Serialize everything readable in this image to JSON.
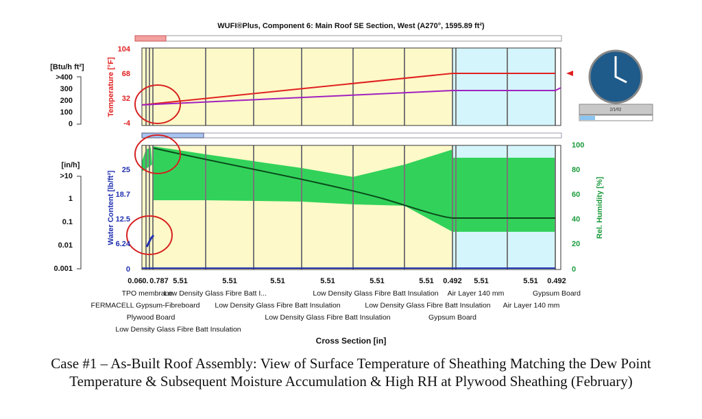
{
  "header": {
    "title": "WUFI®Plus, Component 6: Main Roof SE Section, West (A270°, 1595.89 ft²)"
  },
  "top_panel": {
    "flux_unit": "[Btu/h ft²]",
    "flux_ticks": [
      ">400",
      "300",
      "200",
      "100",
      "0"
    ],
    "axis_label": "Temperature [°F]",
    "ticks": [
      "104",
      "68",
      "32",
      "-4"
    ]
  },
  "bottom_panel": {
    "rate_unit": "[in/h]",
    "rate_ticks": [
      ">10",
      "1",
      "0.1",
      "0.01",
      "0.001"
    ],
    "left_axis_label": "Water Content [lb/ft³]",
    "left_ticks": [
      "25",
      "18.7",
      "12.5",
      "6.24",
      "0"
    ],
    "right_axis_label": "Rel. Humidity [%]",
    "right_ticks": [
      "100",
      "80",
      "60",
      "40",
      "20",
      "0"
    ]
  },
  "x_axis": {
    "ticks": [
      "0.06",
      "0.",
      "0.787",
      "5.51",
      "5.51",
      "5.51",
      "5.51",
      "5.51",
      "5.51",
      "0.492",
      "5.51",
      "5.51",
      "0.492"
    ],
    "label": "Cross Section [in]"
  },
  "layers": [
    [
      "TPO membrane",
      "Low Density Glass Fibre Batt I...",
      "Low Density Glass Fibre Batt Insulation",
      "Air Layer 140 mm",
      "Gypsum Board"
    ],
    [
      "FERMACELL Gypsum-Fibreboard",
      "Low Density Glass Fibre Batt Insulation",
      "Low Density Glass Fibre Batt Insulation",
      "Air Layer 140 mm"
    ],
    [
      "Plywood Board",
      "Low Density Glass Fibre Batt Insulation",
      "Gypsum Board"
    ],
    [
      "Low Density Glass Fibre Batt Insulation"
    ]
  ],
  "clock": {
    "date": "2/1/02"
  },
  "caption": "Case #1 – As-Built Roof Assembly: View of Surface Temperature of Sheathing Matching the Dew Point Temperature & Subsequent Moisture Accumulation & High RH at Plywood Sheathing (February)"
}
